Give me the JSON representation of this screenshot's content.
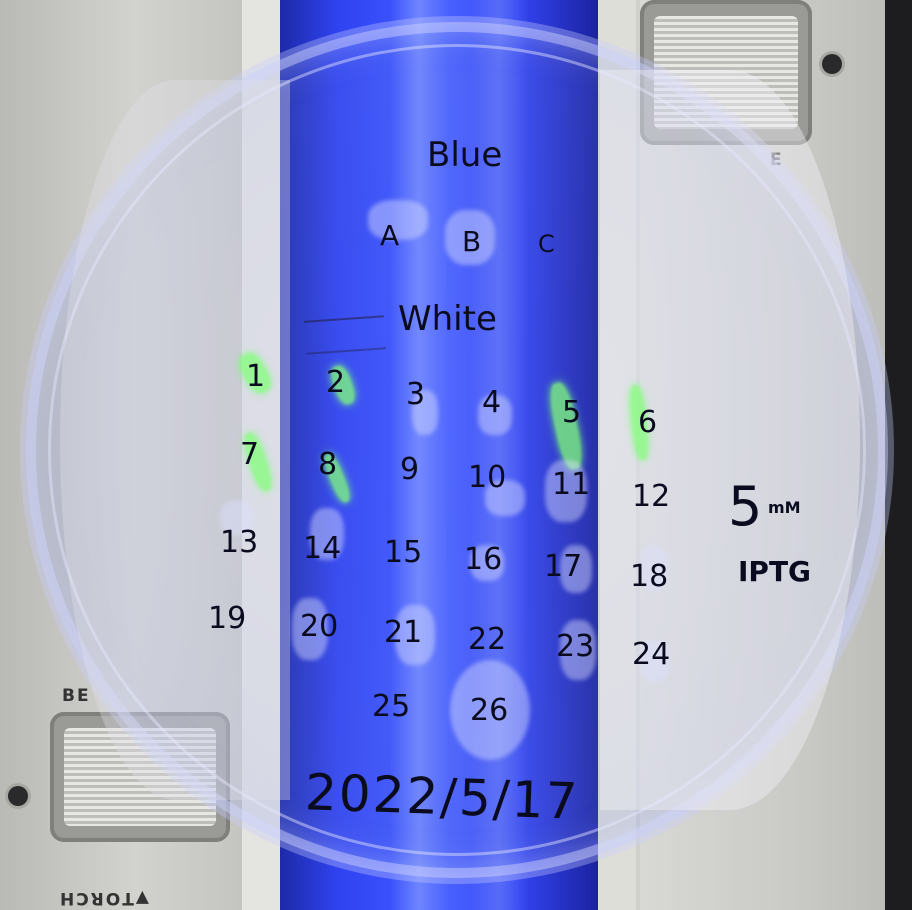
{
  "plate": {
    "section_blue": "Blue",
    "section_white": "White",
    "strains": [
      "A",
      "B",
      "C"
    ],
    "wells": [
      "1",
      "2",
      "3",
      "4",
      "5",
      "6",
      "7",
      "8",
      "9",
      "10",
      "11",
      "12",
      "13",
      "14",
      "15",
      "16",
      "17",
      "18",
      "19",
      "20",
      "21",
      "22",
      "23",
      "24",
      "25",
      "26"
    ],
    "side_note_line1": "5",
    "side_note_sup": "mM",
    "side_note_line2": "IPTG",
    "date": "2022/5/17"
  },
  "device": {
    "label_top": "E",
    "label_left": "BE",
    "label_bottom": "▼TORCH"
  },
  "colors": {
    "uv_blue": "#3c55ff",
    "glow_green": "#82ff78",
    "ink": "#0b0b1f"
  }
}
